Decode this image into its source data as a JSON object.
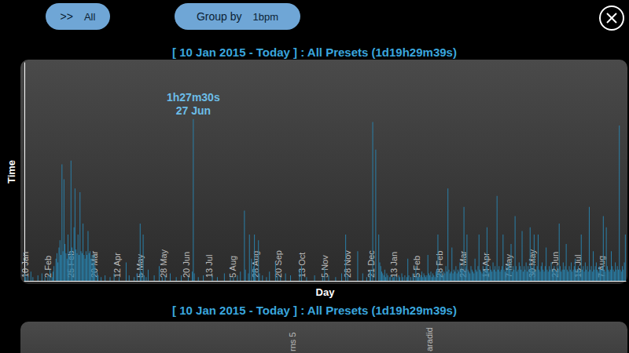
{
  "toolbar": {
    "filter": [
      ">>",
      "All"
    ],
    "group_by": [
      "Group by",
      "1bpm"
    ]
  },
  "chart_data": {
    "type": "bar",
    "title": "[ 10 Jan 2015 - Today ] : All Presets (1d19h29m39s)",
    "x_label": "Day",
    "y_label": "Time",
    "annotation": [
      "1h27m30s",
      "27 Jun"
    ],
    "color": "#2a7fa8",
    "ylim": [
      0,
      118
    ],
    "yticks": [],
    "grid": false,
    "tick_labels": "x",
    "categories": [
      "10 Jan",
      null,
      null,
      null,
      null,
      null,
      null,
      null,
      null,
      null,
      null,
      null,
      null,
      null,
      null,
      null,
      null,
      null,
      null,
      null,
      null,
      null,
      null,
      "2 Feb",
      null,
      null,
      null,
      null,
      null,
      null,
      null,
      null,
      null,
      null,
      null,
      null,
      null,
      null,
      null,
      null,
      null,
      null,
      null,
      null,
      null,
      null,
      "25 Feb",
      null,
      null,
      null,
      null,
      null,
      null,
      null,
      null,
      null,
      null,
      null,
      null,
      null,
      null,
      null,
      null,
      null,
      null,
      null,
      null,
      null,
      null,
      "20 Mar",
      null,
      null,
      null,
      null,
      null,
      null,
      null,
      null,
      null,
      null,
      null,
      null,
      null,
      null,
      null,
      null,
      null,
      null,
      null,
      null,
      null,
      null,
      "12 Apr",
      null,
      null,
      null,
      null,
      null,
      null,
      null,
      null,
      null,
      null,
      null,
      null,
      null,
      null,
      null,
      null,
      null,
      null,
      null,
      null,
      null,
      null,
      "5 May",
      null,
      null,
      null,
      null,
      null,
      null,
      null,
      null,
      null,
      null,
      null,
      null,
      null,
      null,
      null,
      null,
      null,
      null,
      null,
      null,
      null,
      null,
      "28 May",
      null,
      null,
      null,
      null,
      null,
      null,
      null,
      null,
      null,
      null,
      null,
      null,
      null,
      null,
      null,
      null,
      null,
      null,
      null,
      null,
      null,
      null,
      "20 Jun",
      null,
      null,
      null,
      null,
      null,
      null,
      null,
      null,
      null,
      null,
      null,
      null,
      null,
      null,
      null,
      null,
      null,
      null,
      null,
      null,
      null,
      null,
      "13 Jul",
      null,
      null,
      null,
      null,
      null,
      null,
      null,
      null,
      null,
      null,
      null,
      null,
      null,
      null,
      null,
      null,
      null,
      null,
      null,
      null,
      null,
      null,
      "5 Aug",
      null,
      null,
      null,
      null,
      null,
      null,
      null,
      null,
      null,
      null,
      null,
      null,
      null,
      null,
      null,
      null,
      null,
      null,
      null,
      null,
      null,
      null,
      "28 Aug",
      null,
      null,
      null,
      null,
      null,
      null,
      null,
      null,
      null,
      null,
      null,
      null,
      null,
      null,
      null,
      null,
      null,
      null,
      null,
      null,
      null,
      null,
      "20 Sep",
      null,
      null,
      null,
      null,
      null,
      null,
      null,
      null,
      null,
      null,
      null,
      null,
      null,
      null,
      null,
      null,
      null,
      null,
      null,
      null,
      null,
      null,
      "13 Oct",
      null,
      null,
      null,
      null,
      null,
      null,
      null,
      null,
      null,
      null,
      null,
      null,
      null,
      null,
      null,
      null,
      null,
      null,
      null,
      null,
      null,
      null,
      "5 Nov",
      null,
      null,
      null,
      null,
      null,
      null,
      null,
      null,
      null,
      null,
      null,
      null,
      null,
      null,
      null,
      null,
      null,
      null,
      null,
      null,
      null,
      null,
      "28 Nov",
      null,
      null,
      null,
      null,
      null,
      null,
      null,
      null,
      null,
      null,
      null,
      null,
      null,
      null,
      null,
      null,
      null,
      null,
      null,
      null,
      null,
      null,
      "21 Dec",
      null,
      null,
      null,
      null,
      null,
      null,
      null,
      null,
      null,
      null,
      null,
      null,
      null,
      null,
      null,
      null,
      null,
      null,
      null,
      null,
      null,
      null,
      "13 Jan",
      null,
      null,
      null,
      null,
      null,
      null,
      null,
      null,
      null,
      null,
      null,
      null,
      null,
      null,
      null,
      null,
      null,
      null,
      null,
      null,
      null,
      null,
      "5 Feb",
      null,
      null,
      null,
      null,
      null,
      null,
      null,
      null,
      null,
      null,
      null,
      null,
      null,
      null,
      null,
      null,
      null,
      null,
      null,
      null,
      null,
      null,
      "28 Feb",
      null,
      null,
      null,
      null,
      null,
      null,
      null,
      null,
      null,
      null,
      null,
      null,
      null,
      null,
      null,
      null,
      null,
      null,
      null,
      null,
      null,
      null,
      "22 Mar",
      null,
      null,
      null,
      null,
      null,
      null,
      null,
      null,
      null,
      null,
      null,
      null,
      null,
      null,
      null,
      null,
      null,
      null,
      null,
      null,
      null,
      null,
      "14 Apr",
      null,
      null,
      null,
      null,
      null,
      null,
      null,
      null,
      null,
      null,
      null,
      null,
      null,
      null,
      null,
      null,
      null,
      null,
      null,
      null,
      null,
      null,
      "7 May",
      null,
      null,
      null,
      null,
      null,
      null,
      null,
      null,
      null,
      null,
      null,
      null,
      null,
      null,
      null,
      null,
      null,
      null,
      null,
      null,
      null,
      null,
      "30 May",
      null,
      null,
      null,
      null,
      null,
      null,
      null,
      null,
      null,
      null,
      null,
      null,
      null,
      null,
      null,
      null,
      null,
      null,
      null,
      null,
      null,
      null,
      "22 Jun",
      null,
      null,
      null,
      null,
      null,
      null,
      null,
      null,
      null,
      null,
      null,
      null,
      null,
      null,
      null,
      null,
      null,
      null,
      null,
      null,
      null,
      null,
      "15 Jul",
      null,
      null,
      null,
      null,
      null,
      null,
      null,
      null,
      null,
      null,
      null,
      null,
      null,
      null,
      null,
      null,
      null,
      null,
      null,
      null,
      null,
      null,
      "7 Aug",
      null,
      null,
      null,
      null,
      null,
      null,
      null,
      null,
      null,
      null,
      null,
      null,
      null,
      null,
      null,
      null,
      null,
      null,
      null,
      null,
      null,
      null,
      null,
      null
    ],
    "values": [
      4,
      2,
      0,
      3,
      0,
      0,
      5,
      0,
      2,
      0,
      0,
      0,
      0,
      3,
      0,
      0,
      0,
      4,
      0,
      0,
      2,
      0,
      0,
      3,
      0,
      6,
      0,
      2,
      5,
      8,
      0,
      12,
      15,
      10,
      18,
      22,
      14,
      63,
      16,
      55,
      20,
      15,
      12,
      25,
      14,
      16,
      65,
      18,
      14,
      29,
      50,
      17,
      15,
      25,
      14,
      48,
      16,
      15,
      31,
      14,
      12,
      16,
      14,
      27,
      15,
      16,
      12,
      14,
      10,
      14,
      8,
      0,
      5,
      3,
      0,
      0,
      2,
      0,
      0,
      0,
      3,
      0,
      0,
      0,
      0,
      2,
      0,
      0,
      0,
      4,
      0,
      0,
      0,
      0,
      2,
      0,
      0,
      0,
      0,
      0,
      0,
      10,
      0,
      0,
      3,
      0,
      0,
      0,
      0,
      2,
      0,
      0,
      4,
      0,
      0,
      31,
      5,
      0,
      25,
      3,
      0,
      2,
      0,
      6,
      0,
      0,
      0,
      0,
      0,
      3,
      0,
      0,
      0,
      0,
      8,
      0,
      0,
      2,
      0,
      0,
      3,
      0,
      0,
      0,
      0,
      4,
      0,
      0,
      0,
      0,
      0,
      2,
      0,
      0,
      0,
      0,
      3,
      0,
      0,
      0,
      0,
      0,
      0,
      2,
      0,
      0,
      0,
      5,
      87.5,
      4,
      0,
      0,
      0,
      2,
      0,
      0,
      0,
      0,
      3,
      0,
      0,
      0,
      0,
      0,
      0,
      0,
      0,
      3,
      0,
      0,
      0,
      0,
      2,
      0,
      0,
      0,
      0,
      0,
      0,
      4,
      0,
      0,
      0,
      0,
      0,
      2,
      0,
      0,
      2,
      0,
      0,
      0,
      3,
      0,
      0,
      5,
      0,
      0,
      0,
      38,
      6,
      0,
      0,
      4,
      25,
      0,
      12,
      0,
      8,
      25,
      6,
      0,
      0,
      22,
      4,
      0,
      0,
      3,
      0,
      0,
      0,
      2,
      0,
      0,
      5,
      0,
      0,
      0,
      0,
      0,
      10,
      0,
      3,
      0,
      0,
      2,
      0,
      0,
      0,
      0,
      4,
      0,
      0,
      0,
      0,
      3,
      0,
      0,
      0,
      0,
      0,
      0,
      0,
      0,
      6,
      0,
      8,
      0,
      0,
      0,
      0,
      2,
      0,
      0,
      0,
      0,
      0,
      0,
      0,
      3,
      0,
      0,
      0,
      0,
      0,
      0,
      0,
      2,
      0,
      7,
      0,
      0,
      0,
      3,
      0,
      0,
      0,
      0,
      0,
      0,
      2,
      0,
      0,
      0,
      0,
      0,
      4,
      0,
      0,
      0,
      25,
      0,
      3,
      0,
      0,
      0,
      0,
      0,
      0,
      0,
      0,
      0,
      16,
      0,
      0,
      0,
      0,
      4,
      0,
      0,
      0,
      2,
      0,
      0,
      5,
      6,
      0,
      86,
      0,
      0,
      71,
      0,
      0,
      25,
      10,
      8,
      5,
      4,
      3,
      6,
      2,
      4,
      3,
      0,
      2,
      3,
      0,
      2,
      2,
      3,
      0,
      2,
      0,
      3,
      2,
      0,
      4,
      2,
      0,
      3,
      0,
      2,
      12,
      3,
      0,
      2,
      0,
      4,
      2,
      0,
      8,
      3,
      2,
      4,
      2,
      3,
      5,
      2,
      4,
      3,
      2,
      3,
      14,
      4,
      3,
      5,
      2,
      4,
      3,
      2,
      5,
      6,
      25,
      4,
      5,
      4,
      6,
      3,
      5,
      4,
      8,
      5,
      50,
      6,
      4,
      5,
      18,
      4,
      6,
      5,
      8,
      4,
      6,
      5,
      10,
      6,
      8,
      6,
      40,
      5,
      8,
      25,
      6,
      5,
      4,
      8,
      6,
      5,
      4,
      12,
      6,
      5,
      8,
      25,
      6,
      5,
      4,
      8,
      5,
      6,
      8,
      29,
      6,
      5,
      8,
      6,
      5,
      10,
      6,
      8,
      5,
      46,
      6,
      8,
      5,
      6,
      8,
      25,
      6,
      5,
      8,
      6,
      10,
      8,
      6,
      20,
      5,
      8,
      6,
      35,
      8,
      5,
      6,
      10,
      8,
      6,
      27,
      5,
      8,
      6,
      10,
      5,
      8,
      6,
      29,
      8,
      6,
      8,
      25,
      5,
      6,
      8,
      25,
      6,
      5,
      8,
      10,
      6,
      5,
      8,
      18,
      6,
      5,
      8,
      6,
      10,
      5,
      6,
      8,
      6,
      5,
      8,
      6,
      31,
      8,
      5,
      6,
      10,
      6,
      8,
      20,
      6,
      5,
      8,
      6,
      10,
      5,
      6,
      8,
      12,
      6,
      5,
      8,
      6,
      5,
      25,
      6,
      8,
      5,
      10,
      6,
      8,
      5,
      40,
      6,
      8,
      5,
      16,
      6,
      8,
      10,
      6,
      5,
      8,
      6,
      6,
      8,
      35,
      6,
      5,
      29,
      8,
      6,
      5,
      6,
      16,
      8,
      6,
      5,
      10,
      6,
      8,
      6,
      84,
      6,
      5,
      8,
      6,
      10,
      25
    ]
  },
  "second_panel": {
    "title": "[ 10 Jan 2015 - Today ] : All Presets (1d19h29m39s)",
    "labels": [
      "rns 5",
      "aradid"
    ]
  }
}
